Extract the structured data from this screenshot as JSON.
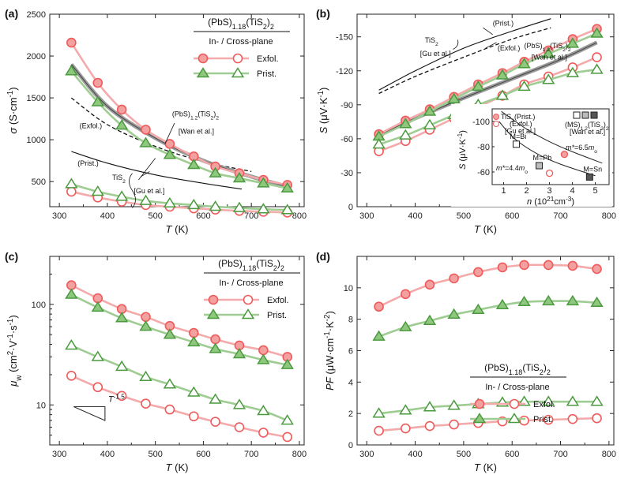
{
  "colors": {
    "exfol": "#f05a5a",
    "prist": "#4a9a3e",
    "exfol_fill": "#f2a0a0",
    "prist_fill": "#8fc77e",
    "exfol_line": "#f4aaaa",
    "prist_line": "#9fcc93"
  },
  "legend": {
    "title": "(PbS)1.18(TiS2)2",
    "subtitle": "In- / Cross-plane",
    "exfol": "Exfol.",
    "prist": "Prist."
  },
  "chart_data": [
    {
      "panel": "(a)",
      "type": "line",
      "xlabel": "T (K)",
      "ylabel": "σ (S·cm⁻¹)",
      "xlim": [
        280,
        810
      ],
      "ylim": [
        200,
        2500
      ],
      "xticks": [
        "300",
        "400",
        "500",
        "600",
        "700",
        "800"
      ],
      "yticks": [
        "500",
        "1000",
        "1500",
        "2000",
        "2500"
      ],
      "x": [
        325,
        380,
        430,
        480,
        530,
        580,
        625,
        675,
        725,
        775
      ],
      "series": [
        {
          "name": "Exfol.",
          "style": "filled",
          "values": [
            2160,
            1680,
            1360,
            1120,
            950,
            800,
            680,
            600,
            520,
            460
          ]
        },
        {
          "name": "Prist.",
          "style": "filled",
          "values": [
            1820,
            1450,
            1170,
            960,
            820,
            700,
            600,
            540,
            480,
            420
          ]
        },
        {
          "name": "Exfol.",
          "style": "open",
          "values": [
            380,
            310,
            260,
            220,
            200,
            180,
            165,
            150,
            140,
            130
          ]
        },
        {
          "name": "Prist.",
          "style": "open",
          "values": [
            470,
            380,
            320,
            270,
            240,
            220,
            200,
            185,
            170,
            160
          ]
        }
      ],
      "refs": [
        {
          "kind": "dashed",
          "x": [
            325,
            400,
            500,
            600,
            700
          ],
          "values": [
            1500,
            1180,
            920,
            740,
            620
          ]
        },
        {
          "kind": "solid",
          "x": [
            325,
            400,
            500,
            600,
            680
          ],
          "values": [
            860,
            720,
            580,
            480,
            410
          ]
        },
        {
          "kind": "thick",
          "x": [
            325,
            400,
            500,
            600,
            700,
            775
          ],
          "values": [
            1900,
            1400,
            1020,
            750,
            560,
            440
          ]
        }
      ],
      "annotations": [
        {
          "text": "(Exfol.)",
          "x": 342,
          "y": 1140
        },
        {
          "text": "(Prist.)",
          "x": 338,
          "y": 690
        },
        {
          "text": "TiS2",
          "x": 410,
          "y": 520
        },
        {
          "text": "[Gu et al.]",
          "x": 455,
          "y": 360
        },
        {
          "text": "(PbS)1.2(TiS2)2",
          "x": 535,
          "y": 1280
        },
        {
          "text": "[Wan et al.]",
          "x": 548,
          "y": 1070
        }
      ]
    },
    {
      "panel": "(b)",
      "type": "line",
      "xlabel": "T (K)",
      "ylabel": "S (μV·K⁻¹)",
      "xlim": [
        280,
        810
      ],
      "ylim": [
        0,
        -170
      ],
      "xticks": [
        "300",
        "400",
        "500",
        "600",
        "700",
        "800"
      ],
      "yticks": [
        "0",
        "-30",
        "-60",
        "-90",
        "-120",
        "-150"
      ],
      "x": [
        325,
        380,
        430,
        480,
        530,
        580,
        625,
        675,
        725,
        775
      ],
      "series": [
        {
          "name": "Exfol.",
          "style": "filled",
          "values": [
            -64,
            -76,
            -86,
            -97,
            -108,
            -118,
            -128,
            -138,
            -148,
            -157
          ]
        },
        {
          "name": "Prist.",
          "style": "filled",
          "values": [
            -62,
            -73,
            -84,
            -95,
            -106,
            -116,
            -126,
            -135,
            -144,
            -153
          ]
        },
        {
          "name": "Exfol.",
          "style": "open",
          "values": [
            -49,
            -58,
            -68,
            -78,
            -88,
            -98,
            -108,
            -115,
            -123,
            -132
          ]
        },
        {
          "name": "Prist.",
          "style": "open",
          "values": [
            -55,
            -63,
            -72,
            -81,
            -90,
            -98,
            -106,
            -112,
            -118,
            -121
          ]
        }
      ],
      "refs": [
        {
          "kind": "solid",
          "x": [
            325,
            400,
            500,
            600,
            680
          ],
          "values": [
            -103,
            -120,
            -140,
            -155,
            -166
          ]
        },
        {
          "kind": "dashed",
          "x": [
            325,
            400,
            500,
            600,
            680
          ],
          "values": [
            -100,
            -115,
            -132,
            -148,
            -158
          ]
        },
        {
          "kind": "thick",
          "x": [
            325,
            400,
            500,
            600,
            700,
            775
          ],
          "values": [
            -63,
            -78,
            -96,
            -113,
            -130,
            -145
          ]
        }
      ],
      "annotations": [
        {
          "text": "(Prist.)",
          "x": 560,
          "y": -160
        },
        {
          "text": "TiS2",
          "x": 420,
          "y": -145
        },
        {
          "text": "[Gu et al.]",
          "x": 410,
          "y": -133
        },
        {
          "text": "(Exfol.)",
          "x": 570,
          "y": -138
        },
        {
          "text": "(PbS)1.2(TiS2)2",
          "x": 625,
          "y": -140
        },
        {
          "text": "[Wan et al.]",
          "x": 640,
          "y": -130
        }
      ],
      "inset": {
        "xlabel": "n (10²¹cm⁻³)",
        "ylabel": "S (μV·K⁻¹)",
        "xlim": [
          0.5,
          5.6
        ],
        "ylim": [
          -50,
          -110
        ],
        "xticks": [
          "1",
          "2",
          "3",
          "4",
          "5"
        ],
        "yticks": [
          "-60",
          "-80",
          "-100"
        ],
        "legend_a": "TiS2(Prist.)",
        "legend_a2": "(Exfol.)",
        "legend_a3": "[Gu et al.]",
        "legend_b": "(MS)1.2(TiS2)2",
        "legend_b2": "[Wan et al.]",
        "curve_lo": "m*=4.4mo",
        "curve_hi": "m*=6.5mo",
        "curve_lo_x": [
          0.8,
          1.5,
          2.5,
          3.5,
          5.0
        ],
        "curve_lo_y": [
          -100,
          -86,
          -74,
          -66,
          -57
        ],
        "curve_hi_x": [
          0.9,
          2.0,
          3.0,
          4.0,
          5.3
        ],
        "curve_hi_y": [
          -108,
          -94,
          -84,
          -76,
          -67
        ],
        "points": [
          {
            "label": "M=Bi",
            "n": 1.55,
            "s": -82,
            "shape": "square",
            "fill": "none"
          },
          {
            "label": "M=Pb",
            "n": 2.55,
            "s": -65,
            "shape": "square",
            "fill": "#bbbbbb"
          },
          {
            "label": "M=Sn",
            "n": 4.75,
            "s": -56,
            "shape": "square",
            "fill": "#555555"
          },
          {
            "label": "",
            "n": 3.65,
            "s": -74,
            "shape": "circle",
            "fill": "#f2a0a0"
          },
          {
            "label": "",
            "n": 3.0,
            "s": -59,
            "shape": "circle",
            "fill": "none"
          }
        ]
      }
    },
    {
      "panel": "(c)",
      "type": "line",
      "xlabel": "T (K)",
      "ylabel": "μw (cm²·V⁻¹·s⁻¹)",
      "xlim": [
        280,
        810
      ],
      "ylim": [
        4,
        300
      ],
      "log_y": true,
      "xticks": [
        "300",
        "400",
        "500",
        "600",
        "700",
        "800"
      ],
      "yticks": [
        "10",
        "100"
      ],
      "x": [
        325,
        380,
        430,
        480,
        530,
        580,
        625,
        675,
        725,
        775
      ],
      "series": [
        {
          "name": "Exfol.",
          "style": "filled",
          "values": [
            155,
            115,
            90,
            75,
            61,
            52,
            45,
            39,
            35,
            30
          ]
        },
        {
          "name": "Prist.",
          "style": "filled",
          "values": [
            125,
            93,
            73,
            60,
            50,
            42,
            36,
            32,
            28,
            25
          ]
        },
        {
          "name": "Prist.",
          "style": "open",
          "values": [
            39,
            30,
            24,
            19,
            16,
            13.3,
            11.3,
            10,
            8.7,
            7.0
          ]
        },
        {
          "name": "Exfol.",
          "style": "open",
          "values": [
            19.5,
            15,
            12.3,
            10.3,
            9.0,
            7.7,
            6.8,
            6.0,
            5.3,
            4.8
          ]
        }
      ],
      "slope_label": "T-1.5"
    },
    {
      "panel": "(d)",
      "type": "line",
      "xlabel": "T (K)",
      "ylabel": "PF (μW·cm⁻¹·K⁻²)",
      "xlim": [
        280,
        810
      ],
      "ylim": [
        0,
        12
      ],
      "xticks": [
        "300",
        "400",
        "500",
        "600",
        "700",
        "800"
      ],
      "yticks": [
        "0",
        "2",
        "4",
        "6",
        "8",
        "10"
      ],
      "x": [
        325,
        380,
        430,
        480,
        530,
        580,
        625,
        675,
        725,
        775
      ],
      "series": [
        {
          "name": "Exfol.",
          "style": "filled",
          "values": [
            8.8,
            9.6,
            10.2,
            10.6,
            11.0,
            11.3,
            11.45,
            11.45,
            11.4,
            11.2
          ]
        },
        {
          "name": "Prist.",
          "style": "filled",
          "values": [
            6.9,
            7.5,
            7.9,
            8.3,
            8.6,
            8.9,
            9.1,
            9.15,
            9.15,
            9.05
          ]
        },
        {
          "name": "Prist.",
          "style": "open",
          "values": [
            2.0,
            2.2,
            2.4,
            2.5,
            2.6,
            2.7,
            2.75,
            2.75,
            2.75,
            2.75
          ]
        },
        {
          "name": "Exfol.",
          "style": "open",
          "values": [
            0.9,
            1.05,
            1.2,
            1.3,
            1.4,
            1.5,
            1.55,
            1.6,
            1.65,
            1.7
          ]
        }
      ]
    }
  ]
}
